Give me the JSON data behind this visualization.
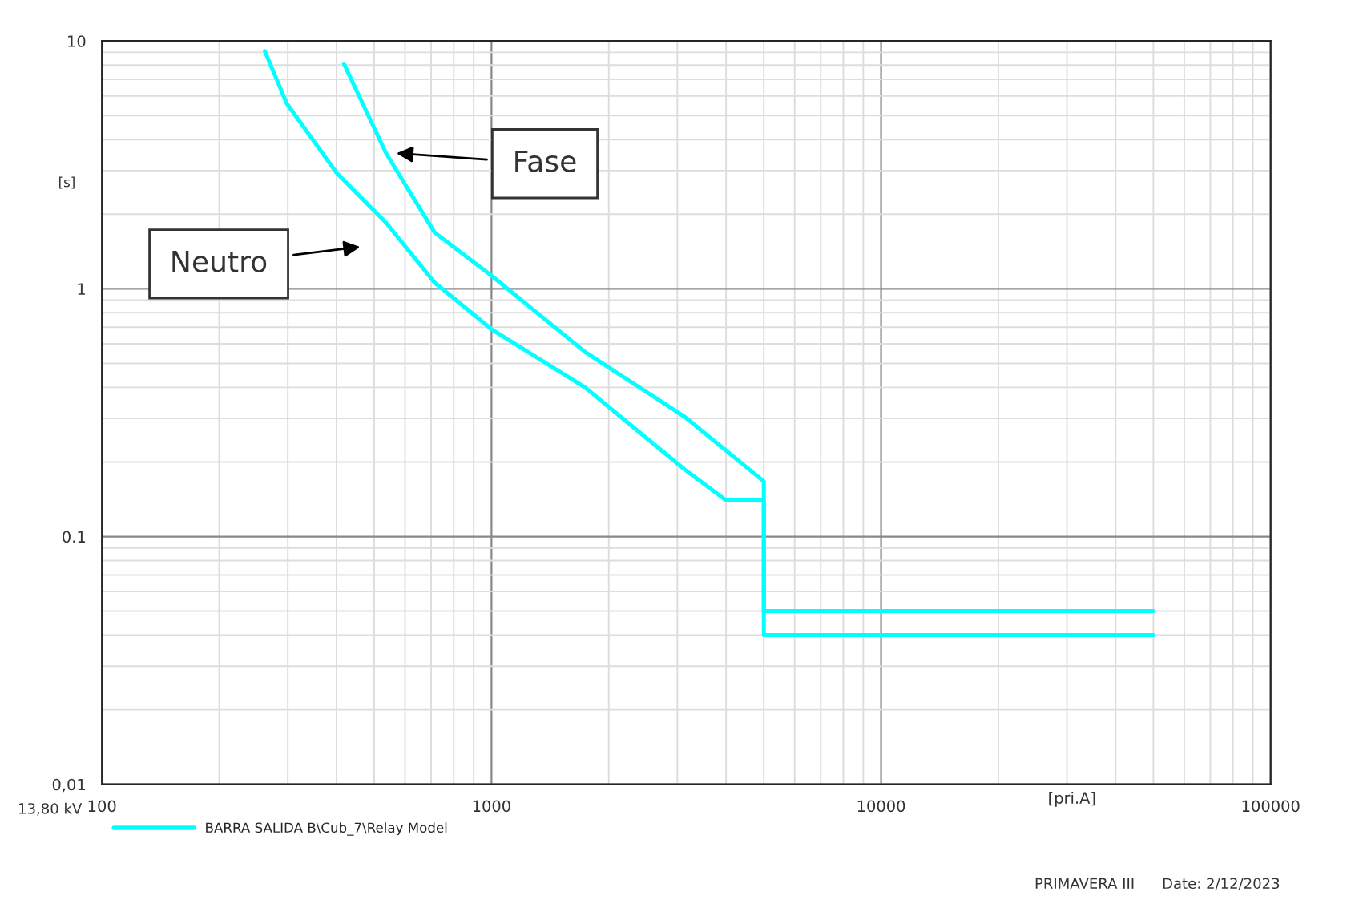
{
  "chart_data": {
    "type": "line",
    "xlabel": "[pri.A]",
    "ylabel": "[s]",
    "log": "xy",
    "xlim": [
      100,
      100000
    ],
    "ylim": [
      0.01,
      10
    ],
    "xticks": [
      100,
      1000,
      10000,
      100000
    ],
    "yticks": [
      {
        "value": 0.01,
        "label": "0,01"
      },
      {
        "value": 0.1,
        "label": "0.1"
      },
      1,
      10
    ],
    "grid": true,
    "legend": "bottom left",
    "line_style": "solid",
    "marker": "none",
    "series": [
      {
        "name": "BARRA SALIDA B\\Cub_7\\Relay Model",
        "color": "#00ffff",
        "x": [
          418,
          536,
          714,
          1000,
          1738,
          3126,
          5000,
          5000,
          50000
        ],
        "values": [
          8.1,
          3.53,
          1.69,
          1.13,
          0.556,
          0.305,
          0.167,
          0.05,
          0.05
        ]
      },
      {
        "color": "#00ffff",
        "x": [
          262,
          298,
          400,
          536,
          714,
          1000,
          1738,
          3126,
          4000,
          5000,
          5000,
          50000
        ],
        "values": [
          9.1,
          5.6,
          2.94,
          1.85,
          1.06,
          0.687,
          0.4,
          0.187,
          0.14,
          0.14,
          0.04,
          0.04
        ]
      }
    ],
    "annotations": [
      "Fase",
      "Neutro",
      "13,80 kV",
      "PRIMAVERA III",
      "Date: 2/12/2023"
    ]
  }
}
